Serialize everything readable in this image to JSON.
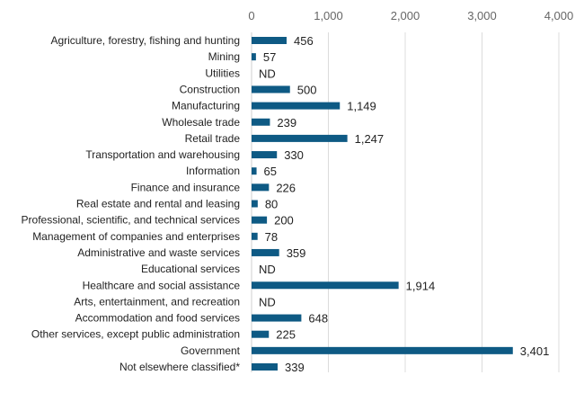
{
  "chart_data": {
    "type": "bar",
    "orientation": "horizontal",
    "title": "",
    "xlabel": "",
    "ylabel": "",
    "xlim": [
      0,
      4000
    ],
    "xticks": [
      0,
      1000,
      2000,
      3000,
      4000
    ],
    "xtick_labels": [
      "0",
      "1,000",
      "2,000",
      "3,000",
      "4,000"
    ],
    "grid": true,
    "bar_color": "#0e5a84",
    "categories": [
      "Agriculture, forestry, fishing and hunting",
      "Mining",
      "Utilities",
      "Construction",
      "Manufacturing",
      "Wholesale trade",
      "Retail trade",
      "Transportation and warehousing",
      "Information",
      "Finance and insurance",
      "Real estate and rental and leasing",
      "Professional, scientific, and technical services",
      "Management of companies and enterprises",
      "Administrative and waste services",
      "Educational services",
      "Healthcare and social assistance",
      "Arts, entertainment, and recreation",
      "Accommodation and food services",
      "Other services, except public administration",
      "Government",
      "Not elsewhere classified*"
    ],
    "values": [
      456,
      57,
      null,
      500,
      1149,
      239,
      1247,
      330,
      65,
      226,
      80,
      200,
      78,
      359,
      null,
      1914,
      null,
      648,
      225,
      3401,
      339
    ],
    "value_labels": [
      "456",
      "57",
      "ND",
      "500",
      "1,149",
      "239",
      "1,247",
      "330",
      "65",
      "226",
      "80",
      "200",
      "78",
      "359",
      "ND",
      "1,914",
      "ND",
      "648",
      "225",
      "3,401",
      "339"
    ]
  }
}
